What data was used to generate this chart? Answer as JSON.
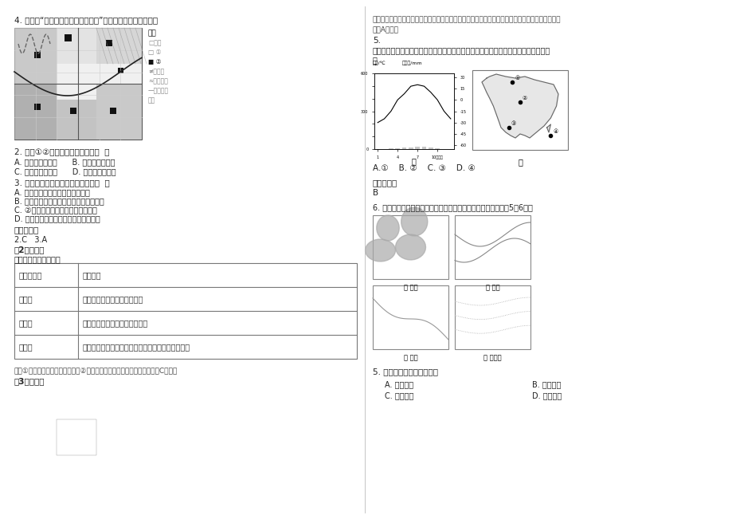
{
  "bg_color": "#ffffff",
  "left_col": {
    "q4_intro": "4. 下图为“某城市功能区分布示意图”，读下图完成下列各题。",
    "q2": "2. 图例①②代表的功能区分别是（  ）",
    "q2_AB": "A. 商业区、文化区      B. 住宅区、行政区",
    "q2_CD": "C. 住宅区、商业区      D. 行政区、文化区",
    "q3": "3. 该市的城市环境问题主要表现为（  ）",
    "q3_A": "A. 工业区近湖分布，湖泊易受污染",
    "q3_B": "B. 高速公路经过城市边缘，造成噪声污染",
    "q3_C": "C. ②功能区分散布局，加重交通拥堵",
    "q3_D": "D. 绿地呈环状分布，加剧城市热岛效应",
    "ans_header": "参考答案：",
    "ans_vals": "2.C   3.A",
    "detail2_header": "【2题详解】",
    "table_intro": "城市三大功能区的比较",
    "table_headers": [
      "城市功能区",
      "分布特点"
    ],
    "table_rows": [
      [
        "商业区",
        "交通便捷的市中心和街道两侧"
      ],
      [
        "工业区",
        "城市外围，沿主要交通干线分布"
      ],
      [
        "住宅区",
        "分布面积最广，高级与低级住宅区有背向发展的趋势"
      ]
    ],
    "explanation2": "图中①占地面积最广，为住宅区。②位于市中心，为商业区，所以本题选择C选项。",
    "detail3_header": "【3题详解】"
  },
  "right_col": {
    "explanation3_line1": "本题考查地理图表的判读能力。根据图示：图中工业区位于湖泊附近，所以湖泊易受污染。所以本题",
    "explanation3_line2": "选择A选项。",
    "q5_num": "5.",
    "q5_text": "下图中，图甲是某地气温和降水量月份分配图，图乙中与此气候类型相对应的地点是（",
    "q5_bracket": "）",
    "q5_opts": "A.①    B. ②    C. ③    D. ④",
    "ans5_header": "参考答案：",
    "ans5_val": "B",
    "q6_text": "6. 下图示意某地理专题研究建立的地理信息系统图层。读图完成5～6题。",
    "panel_labels": [
      "甲 山地",
      "乙 河流",
      "丙 公路",
      "丁 居住区"
    ],
    "q6_subq": "5. 叠加丙与丁图层可以研究",
    "q6_A": "A. 河流分布",
    "q6_B": "B. 地形特征",
    "q6_C": "C. 商店布局",
    "q6_D": "D. 客货流量"
  }
}
